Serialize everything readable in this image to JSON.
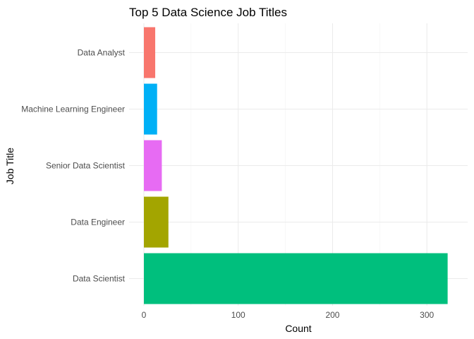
{
  "chart_data": {
    "type": "bar",
    "orientation": "horizontal",
    "title": "Top 5 Data Science Job Titles",
    "xlabel": "Count",
    "ylabel": "Job Title",
    "categories": [
      "Data Scientist",
      "Data Engineer",
      "Senior Data Scientist",
      "Machine Learning Engineer",
      "Data Analyst"
    ],
    "values": [
      322,
      26,
      19,
      14,
      12
    ],
    "colors": [
      "#00BF7D",
      "#A3A500",
      "#E76BF3",
      "#00B0F6",
      "#F8766D"
    ],
    "xlim": [
      0,
      335
    ],
    "xticks": [
      0,
      100,
      200,
      300
    ],
    "grid": true,
    "legend": "none",
    "theme": "minimal"
  }
}
